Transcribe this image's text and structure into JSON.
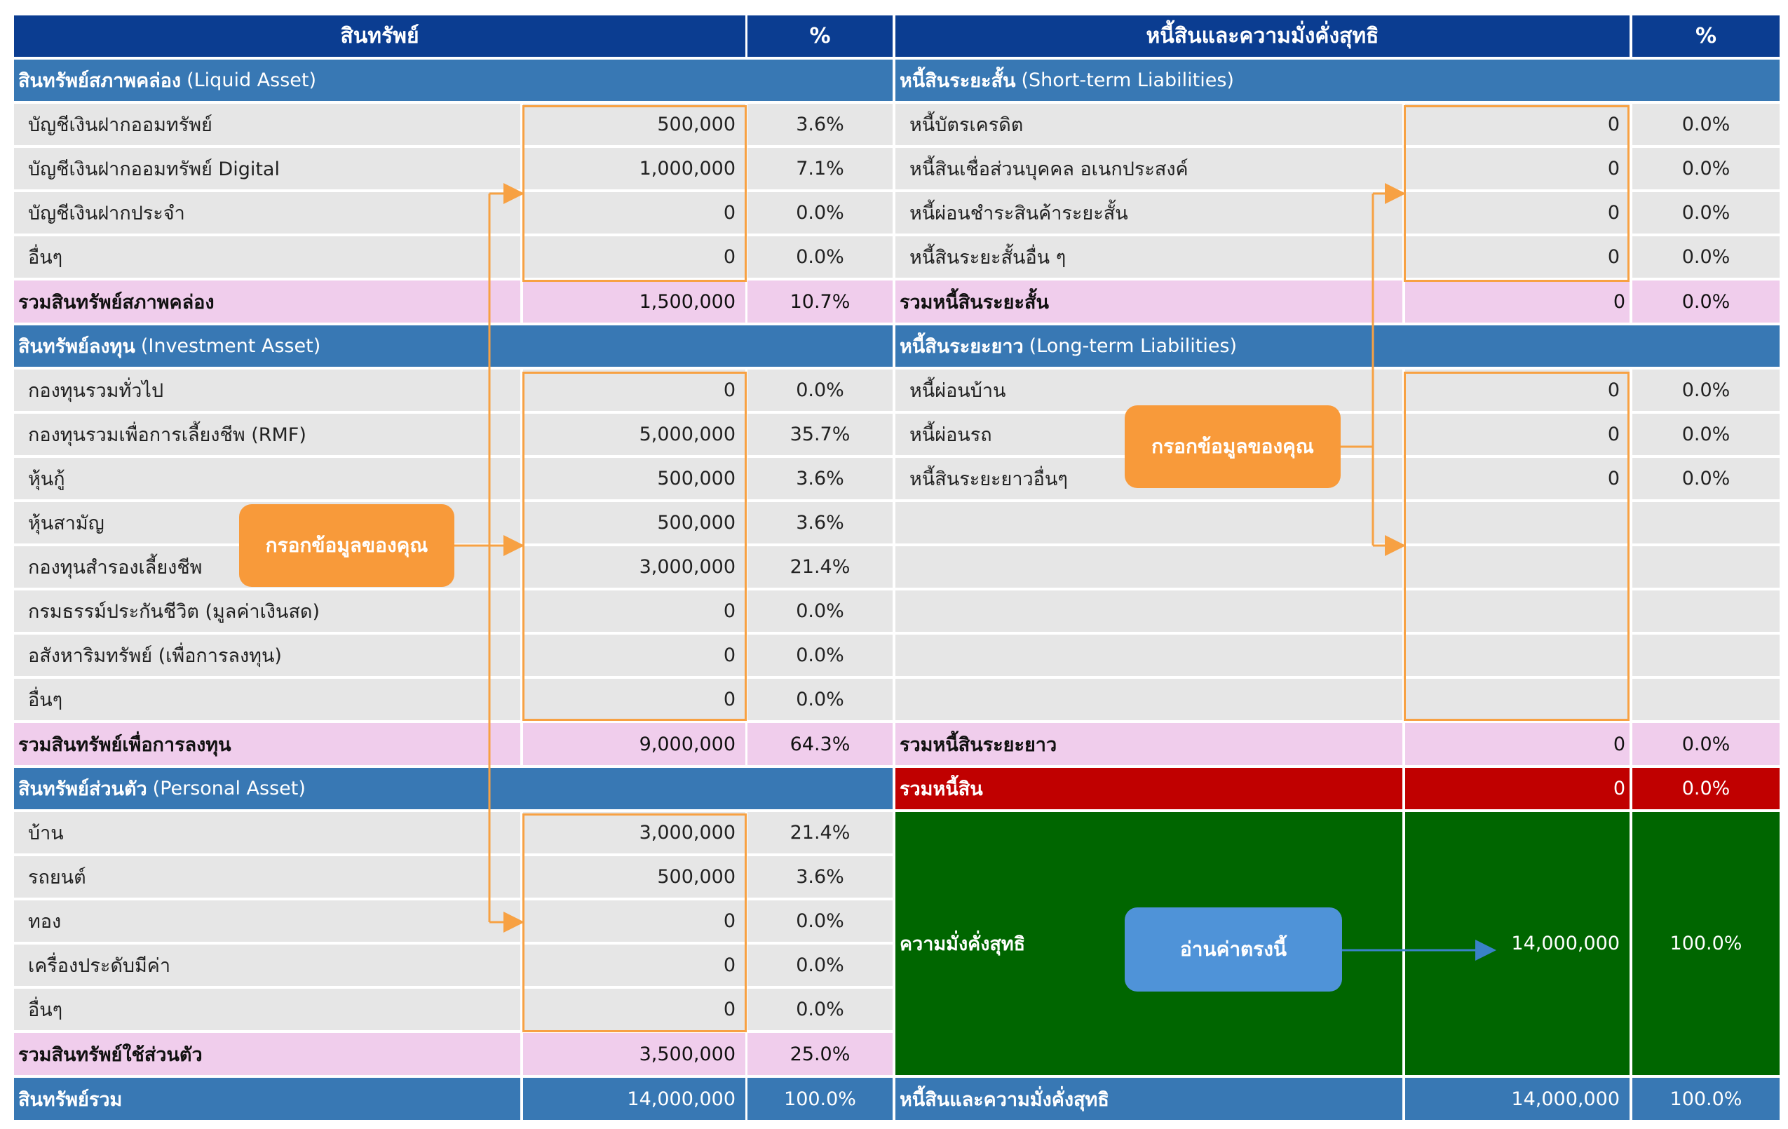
{
  "header": {
    "assets_title": "สินทรัพย์",
    "assets_pct": "%",
    "liab_title": "หนี้สินและความมั่งคั่งสุทธิ",
    "liab_pct": "%"
  },
  "liquid": {
    "title_th": "สินทรัพย์สภาพคล่อง",
    "title_en": "(Liquid Asset)",
    "rows": [
      {
        "label": "บัญชีเงินฝากออมทรัพย์",
        "value": "500,000",
        "pct": "3.6%"
      },
      {
        "label": "บัญชีเงินฝากออมทรัพย์ Digital",
        "value": "1,000,000",
        "pct": "7.1%"
      },
      {
        "label": "บัญชีเงินฝากประจำ",
        "value": "0",
        "pct": "0.0%"
      },
      {
        "label": "อื่นๆ",
        "value": "0",
        "pct": "0.0%"
      }
    ],
    "total": {
      "label": "รวมสินทรัพย์สภาพคล่อง",
      "value": "1,500,000",
      "pct": "10.7%"
    }
  },
  "investment": {
    "title_th": "สินทรัพย์ลงทุน",
    "title_en": "(Investment Asset)",
    "rows": [
      {
        "label": "กองทุนรวมทั่วไป",
        "value": "0",
        "pct": "0.0%"
      },
      {
        "label": "กองทุนรวมเพื่อการเลี้ยงชีพ (RMF)",
        "value": "5,000,000",
        "pct": "35.7%"
      },
      {
        "label": "หุ้นกู้",
        "value": "500,000",
        "pct": "3.6%"
      },
      {
        "label": "หุ้นสามัญ",
        "value": "500,000",
        "pct": "3.6%"
      },
      {
        "label": "กองทุนสำรองเลี้ยงชีพ",
        "value": "3,000,000",
        "pct": "21.4%"
      },
      {
        "label": "กรมธรรม์ประกันชีวิต (มูลค่าเงินสด)",
        "value": "0",
        "pct": "0.0%"
      },
      {
        "label": "อสังหาริมทรัพย์ (เพื่อการลงทุน)",
        "value": "0",
        "pct": "0.0%"
      },
      {
        "label": "อื่นๆ",
        "value": "0",
        "pct": "0.0%"
      }
    ],
    "total": {
      "label": "รวมสินทรัพย์เพื่อการลงทุน",
      "value": "9,000,000",
      "pct": "64.3%"
    }
  },
  "personal": {
    "title_th": "สินทรัพย์ส่วนตัว",
    "title_en": "(Personal Asset)",
    "rows": [
      {
        "label": "บ้าน",
        "value": "3,000,000",
        "pct": "21.4%"
      },
      {
        "label": "รถยนต์",
        "value": "500,000",
        "pct": "3.6%"
      },
      {
        "label": "ทอง",
        "value": "0",
        "pct": "0.0%"
      },
      {
        "label": "เครื่องประดับมีค่า",
        "value": "0",
        "pct": "0.0%"
      },
      {
        "label": "อื่นๆ",
        "value": "0",
        "pct": "0.0%"
      }
    ],
    "total": {
      "label": "รวมสินทรัพย์ใช้ส่วนตัว",
      "value": "3,500,000",
      "pct": "25.0%"
    }
  },
  "assets_total": {
    "label": "สินทรัพย์รวม",
    "value": "14,000,000",
    "pct": "100.0%"
  },
  "short_term": {
    "title_th": "หนี้สินระยะสั้น",
    "title_en": "(Short-term Liabilities)",
    "rows": [
      {
        "label": "หนี้บัตรเครดิต",
        "value": "0",
        "pct": "0.0%"
      },
      {
        "label": "หนี้สินเชื่อส่วนบุคคล อเนกประสงค์",
        "value": "0",
        "pct": "0.0%"
      },
      {
        "label": "หนี้ผ่อนชำระสินค้าระยะสั้น",
        "value": "0",
        "pct": "0.0%"
      },
      {
        "label": "หนี้สินระยะสั้นอื่น ๆ",
        "value": "0",
        "pct": "0.0%"
      }
    ],
    "total": {
      "label": "รวมหนี้สินระยะสั้น",
      "value": "0",
      "pct": "0.0%"
    }
  },
  "long_term": {
    "title_th": "หนี้สินระยะยาว",
    "title_en": "(Long-term Liabilities)",
    "rows": [
      {
        "label": "หนี้ผ่อนบ้าน",
        "value": "0",
        "pct": "0.0%"
      },
      {
        "label": "หนี้ผ่อนรถ",
        "value": "0",
        "pct": "0.0%"
      },
      {
        "label": "หนี้สินระยะยาวอื่นๆ",
        "value": "0",
        "pct": "0.0%"
      }
    ],
    "total": {
      "label": "รวมหนี้สินระยะยาว",
      "value": "0",
      "pct": "0.0%"
    }
  },
  "liabilities_total": {
    "label": "รวมหนี้สิน",
    "value": "0",
    "pct": "0.0%"
  },
  "net_worth": {
    "label": "ความมั่งคั่งสุทธิ",
    "value": "14,000,000",
    "pct": "100.0%"
  },
  "liab_and_networth_total": {
    "label": "หนี้สินและความมั่งคั่งสุทธิ",
    "value": "14,000,000",
    "pct": "100.0%"
  },
  "callouts": {
    "fill_left": "กรอกข้อมูลของคุณ",
    "fill_right": "กรอกข้อมูลของคุณ",
    "read_here": "อ่านค่าตรงนี้"
  },
  "colors": {
    "header": "#0b3d91",
    "section": "#3878b4",
    "subtotal": "#f0cdec",
    "liabilities_total": "#c00000",
    "net_worth": "#006600",
    "input_outline": "#f7a143",
    "callout_orange": "#f89a3a",
    "callout_blue": "#4f93d8"
  }
}
